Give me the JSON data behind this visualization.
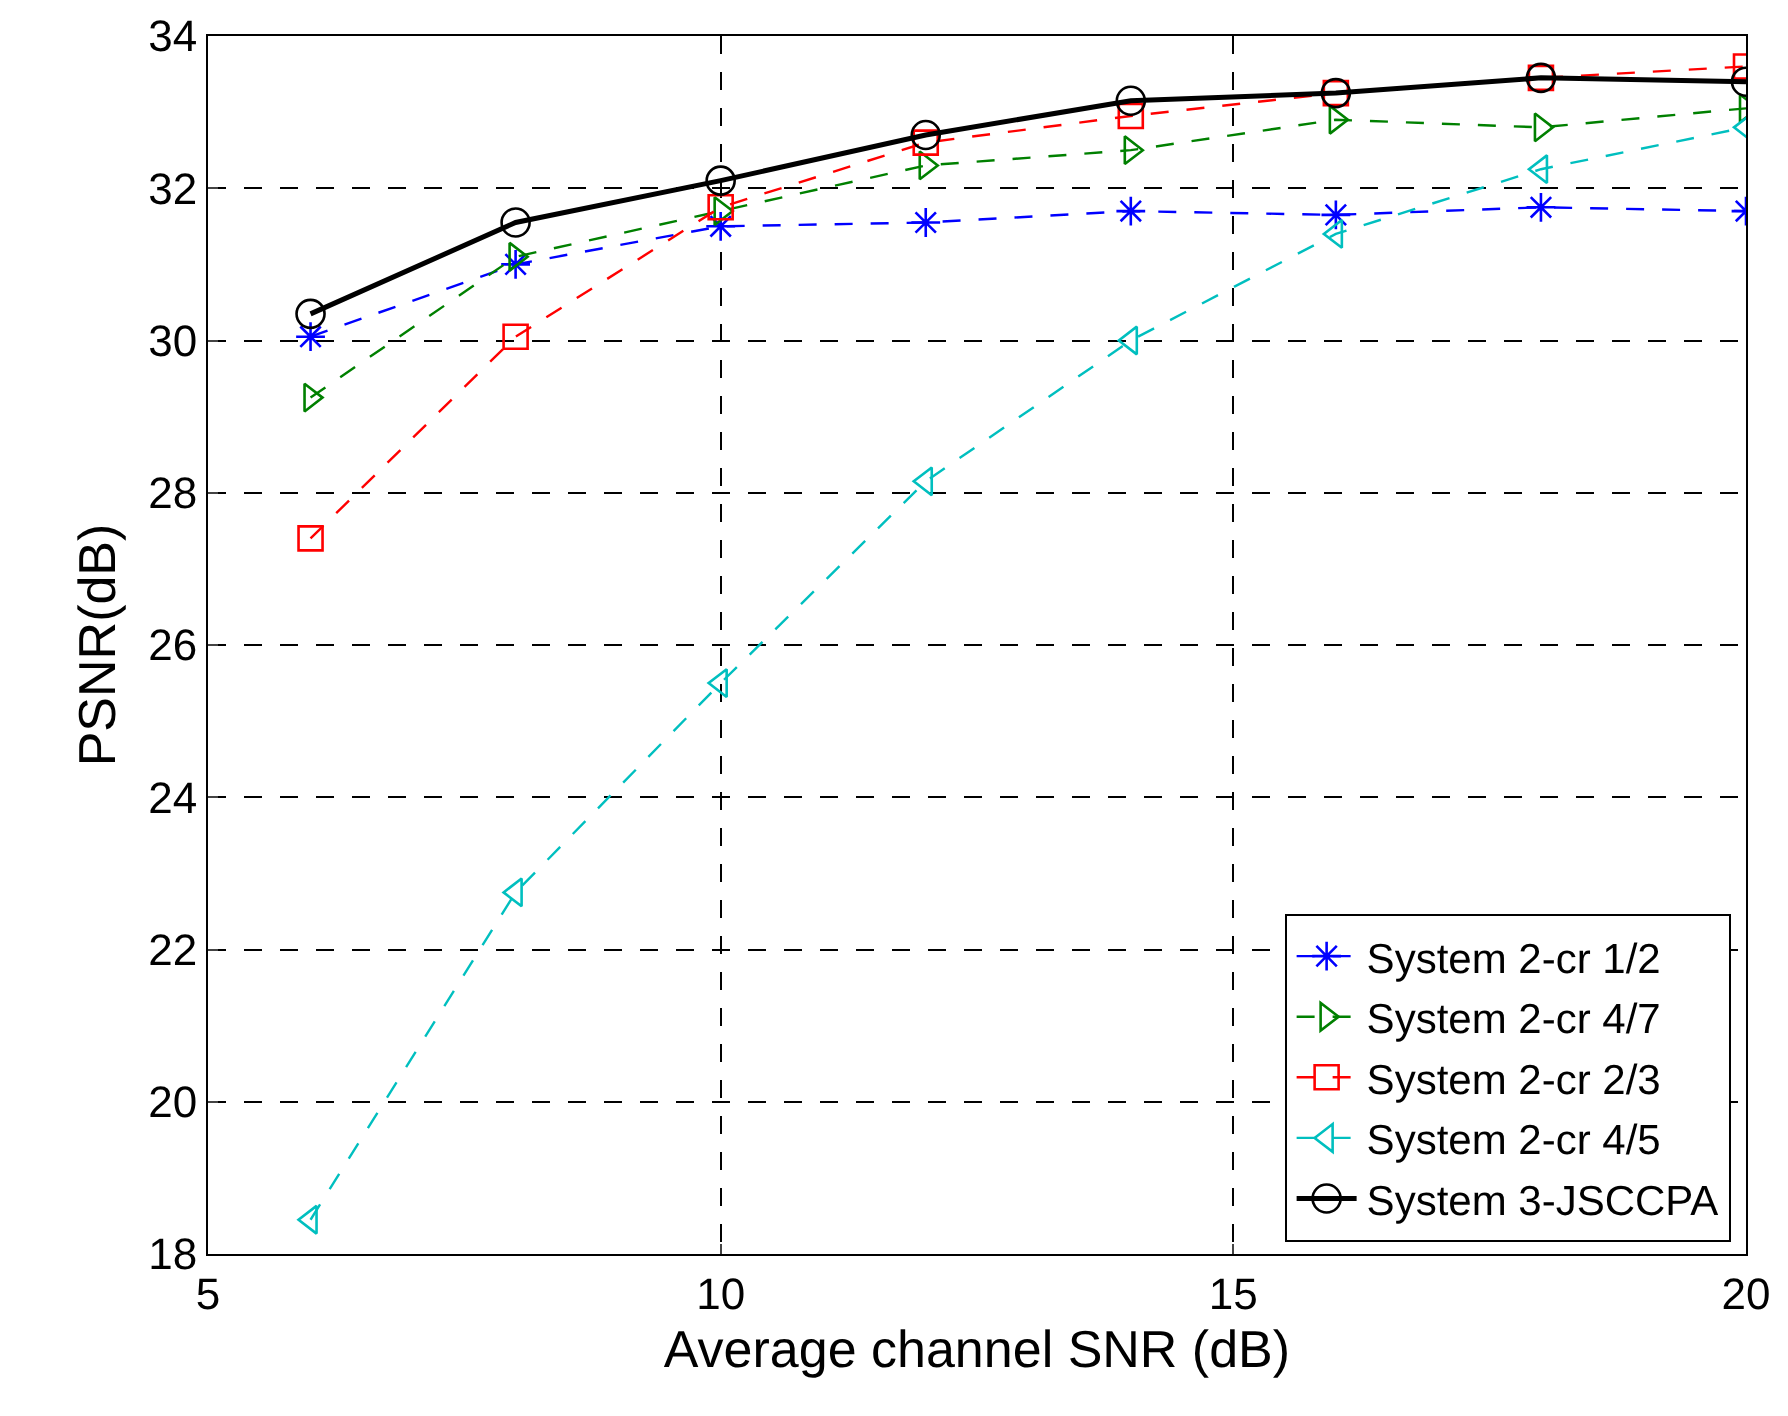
{
  "chart_data": {
    "type": "line",
    "xlabel": "Average channel SNR (dB)",
    "ylabel": "PSNR(dB)",
    "x": [
      6,
      8,
      10,
      12,
      14,
      16,
      18,
      20
    ],
    "series": [
      {
        "name": "System 2-cr 1/2",
        "color": "#0000ff",
        "marker": "cross",
        "line_style": "dashed",
        "values": [
          30.05,
          31.0,
          31.5,
          31.55,
          31.7,
          31.65,
          31.75,
          31.7
        ]
      },
      {
        "name": "System 2-cr 4/7",
        "color": "#008000",
        "marker": "triangle",
        "line_style": "dashed",
        "values": [
          29.25,
          31.1,
          31.7,
          32.3,
          32.5,
          32.9,
          32.8,
          33.05
        ]
      },
      {
        "name": "System 2-cr 2/3",
        "color": "#ff0000",
        "marker": "square",
        "line_style": "dashed",
        "values": [
          27.4,
          30.05,
          31.75,
          32.6,
          32.95,
          33.25,
          33.45,
          33.6
        ]
      },
      {
        "name": "System 2-cr 4/5",
        "color": "#00bfbf",
        "marker": "triangle",
        "line_style": "dashed",
        "values": [
          18.45,
          22.75,
          25.5,
          28.15,
          30.0,
          31.4,
          32.25,
          32.8
        ]
      },
      {
        "name": "System 3-JSCCPA",
        "color": "#000000",
        "marker": "circle",
        "line_style": "solid",
        "values": [
          30.35,
          31.55,
          32.1,
          32.7,
          33.15,
          33.25,
          33.45,
          33.4
        ]
      }
    ],
    "xlim": [
      5,
      20
    ],
    "xticks": [
      5,
      10,
      15,
      20
    ],
    "ylim": [
      18,
      34
    ],
    "yticks": [
      18,
      20,
      22,
      24,
      26,
      28,
      30,
      32,
      34
    ],
    "grid": true,
    "legend": "bottom right"
  }
}
